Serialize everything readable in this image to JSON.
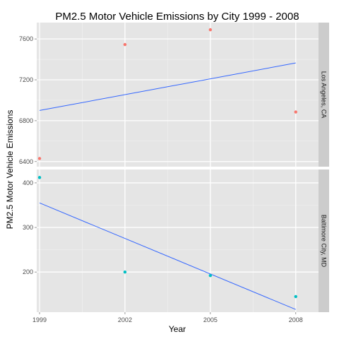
{
  "chart_data": {
    "type": "scatter",
    "title": "PM2.5 Motor Vehicle Emissions by City 1999 - 2008",
    "xlabel": "Year",
    "ylabel": "PM2.5 Motor Vehicle Emissions",
    "x_ticks": [
      1999,
      2002,
      2005,
      2008
    ],
    "xlim": [
      1998.9,
      2008.8
    ],
    "grid": true,
    "legend": "none",
    "facets": [
      {
        "strip": "Los Angeles, CA",
        "ylim": [
          6350,
          7760
        ],
        "y_ticks": [
          6400,
          6800,
          7200,
          7600
        ],
        "point_color": "#F8766D",
        "points": [
          {
            "x": 1999,
            "y": 6430
          },
          {
            "x": 2002,
            "y": 7545
          },
          {
            "x": 2005,
            "y": 7690
          },
          {
            "x": 2008,
            "y": 6885
          }
        ],
        "trend": {
          "color": "#3366FF",
          "x": [
            1999,
            2008
          ],
          "y": [
            6900,
            7365
          ]
        }
      },
      {
        "strip": "Baltimore City, MD",
        "ylim": [
          110,
          430
        ],
        "y_ticks": [
          200,
          300,
          400
        ],
        "point_color": "#00BFC4",
        "points": [
          {
            "x": 1999,
            "y": 412
          },
          {
            "x": 2002,
            "y": 200
          },
          {
            "x": 2005,
            "y": 192
          },
          {
            "x": 2008,
            "y": 145
          }
        ],
        "trend": {
          "color": "#3366FF",
          "x": [
            1999,
            2008
          ],
          "y": [
            355,
            116
          ]
        }
      }
    ]
  }
}
